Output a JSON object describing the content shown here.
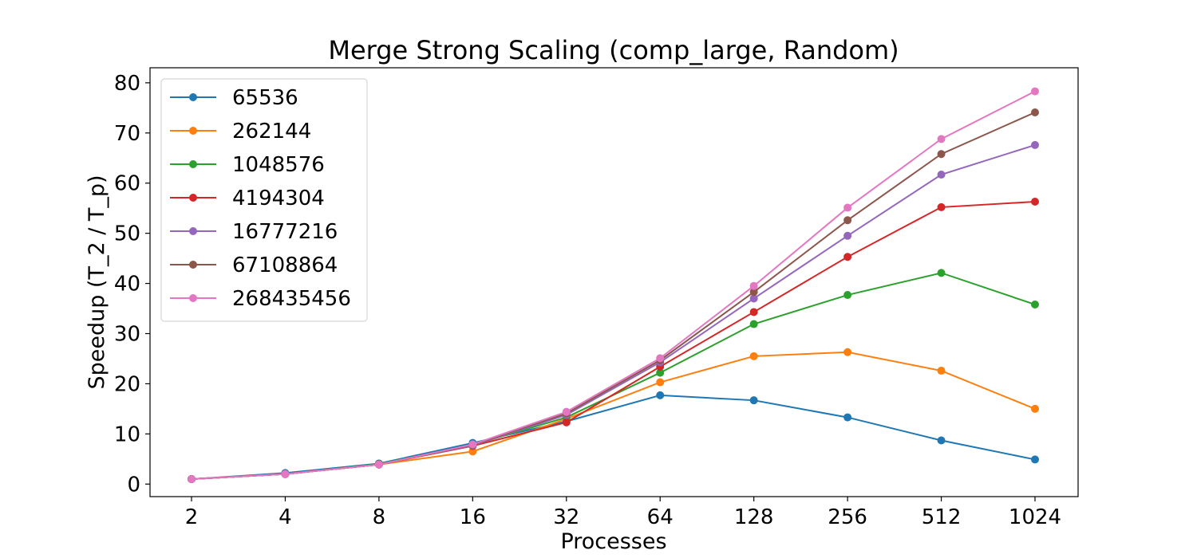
{
  "chart_data": {
    "type": "line",
    "title": "Merge Strong Scaling (comp_large, Random)",
    "xlabel": "Processes",
    "ylabel": "Speedup (T_2 / T_p)",
    "x": [
      "2",
      "4",
      "8",
      "16",
      "32",
      "64",
      "128",
      "256",
      "512",
      "1024"
    ],
    "x_scale": "log2",
    "ylim": [
      -2.5,
      83
    ],
    "yticks": [
      0,
      10,
      20,
      30,
      40,
      50,
      60,
      70,
      80
    ],
    "grid": false,
    "legend_position": "top-left",
    "series": [
      {
        "name": "65536",
        "color": "#1f77b4",
        "values": [
          1.0,
          2.2,
          4.1,
          8.2,
          12.5,
          17.7,
          16.7,
          13.3,
          8.7,
          4.9
        ]
      },
      {
        "name": "262144",
        "color": "#ff7f0e",
        "values": [
          1.0,
          2.0,
          3.9,
          6.5,
          13.0,
          20.3,
          25.5,
          26.3,
          22.6,
          15.0
        ]
      },
      {
        "name": "1048576",
        "color": "#2ca02c",
        "values": [
          1.0,
          2.0,
          4.0,
          7.8,
          13.3,
          22.2,
          31.9,
          37.7,
          42.1,
          35.8
        ]
      },
      {
        "name": "4194304",
        "color": "#d62728",
        "values": [
          1.0,
          2.0,
          3.9,
          7.6,
          12.3,
          23.4,
          34.3,
          45.3,
          55.2,
          56.3
        ]
      },
      {
        "name": "16777216",
        "color": "#9467bd",
        "values": [
          1.0,
          2.0,
          3.9,
          7.7,
          13.8,
          24.3,
          37.0,
          49.5,
          61.7,
          67.6
        ]
      },
      {
        "name": "67108864",
        "color": "#8c564b",
        "values": [
          1.0,
          2.0,
          3.9,
          7.8,
          14.1,
          24.7,
          38.3,
          52.6,
          65.8,
          74.1
        ]
      },
      {
        "name": "268435456",
        "color": "#e377c2",
        "values": [
          1.0,
          2.0,
          3.9,
          7.9,
          14.4,
          25.1,
          39.5,
          55.1,
          68.8,
          78.3
        ]
      }
    ]
  }
}
